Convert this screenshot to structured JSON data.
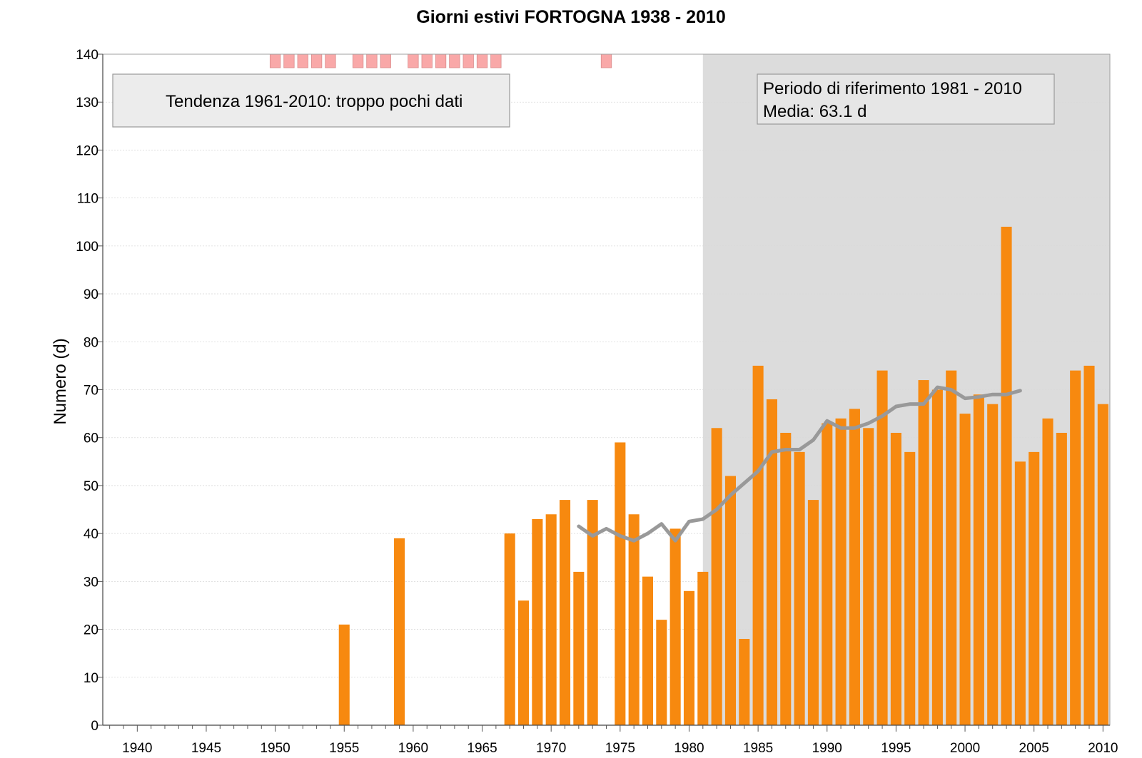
{
  "chart_data": {
    "type": "bar",
    "title": "Giorni estivi FORTOGNA 1938 - 2010",
    "ylabel": "Numero (d)",
    "xlabel": "",
    "xlim": [
      1937.5,
      2010.5
    ],
    "ylim": [
      0,
      140
    ],
    "yticks": [
      0,
      10,
      20,
      30,
      40,
      50,
      60,
      70,
      80,
      90,
      100,
      110,
      120,
      130,
      140
    ],
    "xticks": [
      1940,
      1945,
      1950,
      1955,
      1960,
      1965,
      1970,
      1975,
      1980,
      1985,
      1990,
      1995,
      2000,
      2005,
      2010
    ],
    "grid": true,
    "bar_color": "#f7890f",
    "series": [
      {
        "values": [
          [
            1955,
            21
          ],
          [
            1959,
            39
          ],
          [
            1967,
            40
          ],
          [
            1968,
            26
          ],
          [
            1969,
            43
          ],
          [
            1970,
            44
          ],
          [
            1971,
            47
          ],
          [
            1972,
            32
          ],
          [
            1973,
            47
          ],
          [
            1975,
            59
          ],
          [
            1976,
            44
          ],
          [
            1977,
            31
          ],
          [
            1978,
            22
          ],
          [
            1979,
            41
          ],
          [
            1980,
            28
          ],
          [
            1981,
            32
          ],
          [
            1982,
            62
          ],
          [
            1983,
            52
          ],
          [
            1984,
            18
          ],
          [
            1985,
            75
          ],
          [
            1986,
            68
          ],
          [
            1987,
            61
          ],
          [
            1988,
            57
          ],
          [
            1989,
            47
          ],
          [
            1990,
            63
          ],
          [
            1991,
            64
          ],
          [
            1992,
            66
          ],
          [
            1993,
            62
          ],
          [
            1994,
            74
          ],
          [
            1995,
            61
          ],
          [
            1996,
            57
          ],
          [
            1997,
            72
          ],
          [
            1998,
            70
          ],
          [
            1999,
            74
          ],
          [
            2000,
            65
          ],
          [
            2001,
            69
          ],
          [
            2002,
            67
          ],
          [
            2003,
            104
          ],
          [
            2004,
            55
          ],
          [
            2005,
            57
          ],
          [
            2006,
            64
          ],
          [
            2007,
            61
          ],
          [
            2008,
            74
          ],
          [
            2009,
            75
          ],
          [
            2010,
            67
          ]
        ]
      }
    ],
    "moving_average": {
      "color": "#999999",
      "points": [
        [
          1972,
          41.5
        ],
        [
          1973,
          39.5
        ],
        [
          1974,
          41
        ],
        [
          1975,
          39.5
        ],
        [
          1976,
          38.5
        ],
        [
          1977,
          40
        ],
        [
          1978,
          42
        ],
        [
          1979,
          38.5
        ],
        [
          1980,
          42.5
        ],
        [
          1981,
          43
        ],
        [
          1982,
          45
        ],
        [
          1983,
          48
        ],
        [
          1984,
          50.5
        ],
        [
          1985,
          53
        ],
        [
          1986,
          57
        ],
        [
          1987,
          57.5
        ],
        [
          1988,
          57.5
        ],
        [
          1989,
          59.5
        ],
        [
          1990,
          63.5
        ],
        [
          1991,
          62
        ],
        [
          1992,
          62
        ],
        [
          1993,
          63
        ],
        [
          1994,
          64.5
        ],
        [
          1995,
          66.5
        ],
        [
          1996,
          67
        ],
        [
          1997,
          67
        ],
        [
          1998,
          70.5
        ],
        [
          1999,
          70
        ],
        [
          2000,
          68.2
        ],
        [
          2001,
          68.5
        ],
        [
          2002,
          69
        ],
        [
          2003,
          69
        ],
        [
          2004,
          69.8
        ]
      ]
    },
    "missing_year_color": "#f9a8a8",
    "missing_years": [
      1950,
      1951,
      1952,
      1953,
      1954,
      1956,
      1957,
      1958,
      1960,
      1961,
      1962,
      1963,
      1964,
      1965,
      1966,
      1974
    ],
    "reference_period": {
      "from": 1981,
      "to": 2010,
      "color": "#dcdcdc",
      "label": "Periodo di riferimento 1981 - 2010",
      "mean_label": "Media: 63.1 d"
    },
    "trend_label": "Tendenza 1961-2010: troppo pochi dati"
  }
}
